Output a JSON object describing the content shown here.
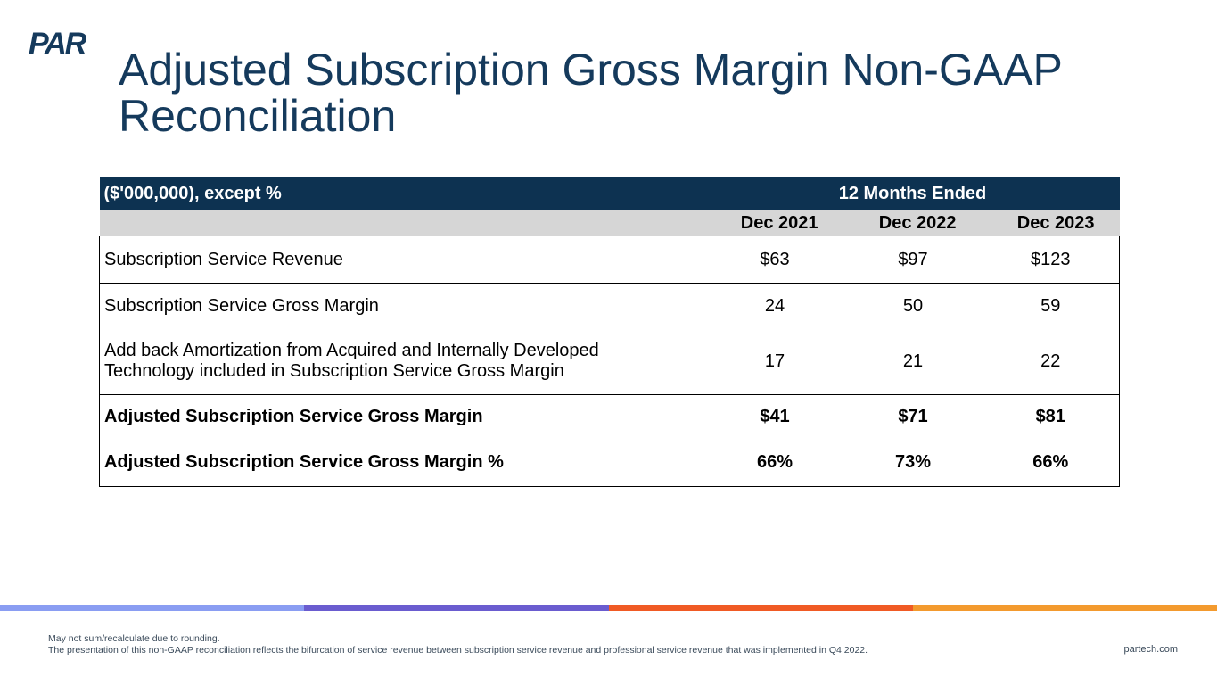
{
  "header": {
    "logo_text": "PAR",
    "title_line1": "Adjusted Subscription Gross Margin Non-GAAP",
    "title_line2": "Reconciliation"
  },
  "table": {
    "units_label": "($'000,000), except %",
    "period_label": "12 Months Ended",
    "columns": [
      "Dec 2021",
      "Dec 2022",
      "Dec 2023"
    ],
    "rows": [
      {
        "label": "Subscription Service Revenue",
        "values": [
          "$63",
          "$97",
          "$123"
        ],
        "bold": false
      },
      {
        "label": "Subscription Service Gross Margin",
        "values": [
          "24",
          "50",
          "59"
        ],
        "bold": false
      },
      {
        "label_line1": "Add back Amortization from Acquired and Internally Developed",
        "label_line2": "Technology included in Subscription Service Gross Margin",
        "values": [
          "17",
          "21",
          "22"
        ],
        "bold": false
      },
      {
        "label": "Adjusted Subscription Service Gross Margin",
        "values": [
          "$41",
          "$71",
          "$81"
        ],
        "bold": true
      },
      {
        "label": "Adjusted Subscription Service Gross Margin %",
        "values": [
          "66%",
          "73%",
          "66%"
        ],
        "bold": true
      }
    ]
  },
  "footer": {
    "note1": "May not sum/recalculate due to rounding.",
    "note2": "The presentation of this non-GAAP reconciliation reflects the bifurcation of service revenue between subscription service revenue and professional service revenue that was implemented in Q4 2022.",
    "website": "partech.com"
  },
  "colors": {
    "title": "#153a5c",
    "table_header": "#0d3251",
    "subheader": "#d6d6d6",
    "stripe": [
      "#8a9df2",
      "#6a5ccf",
      "#f05a24",
      "#f39a2e"
    ]
  }
}
